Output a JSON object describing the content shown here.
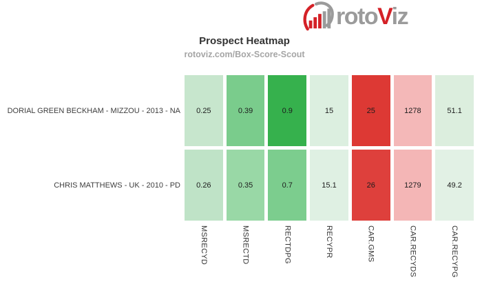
{
  "logo": {
    "text_left": "roto",
    "text_accent": "V",
    "text_right": "iz",
    "accent_color": "#d42127",
    "gray_color": "#9b9b9b"
  },
  "header": {
    "title": "Prospect Heatmap",
    "subtitle": "rotoviz.com/Box-Score-Scout"
  },
  "chart_data": {
    "type": "heatmap",
    "title": "Prospect Heatmap",
    "subtitle": "rotoviz.com/Box-Score-Scout",
    "legend_position": "none",
    "grid": false,
    "columns": [
      "MSRECYD",
      "MSRECTD",
      "RECTDPG",
      "RECYPR",
      "CAR.GMS",
      "CAR.RECYDS",
      "CAR.RECYPG"
    ],
    "rows": [
      {
        "label": "DORIAL GREEN BECKHAM - MIZZOU - 2013 - NA",
        "values": [
          "0.25",
          "0.39",
          "0.9",
          "15",
          "25",
          "1278",
          "51.1"
        ],
        "colors": [
          "#c7e6cd",
          "#7acc8c",
          "#36b14d",
          "#dcefe0",
          "#dd3934",
          "#f4b8b8",
          "#dceede"
        ]
      },
      {
        "label": "CHRIS MATTHEWS - UK - 2010 - PD",
        "values": [
          "0.26",
          "0.35",
          "0.7",
          "15.1",
          "26",
          "1279",
          "49.2"
        ],
        "colors": [
          "#bfe3c7",
          "#99d8a6",
          "#7ccd8e",
          "#dff0e3",
          "#de403c",
          "#f4b6b6",
          "#e2f1e5"
        ]
      }
    ]
  }
}
